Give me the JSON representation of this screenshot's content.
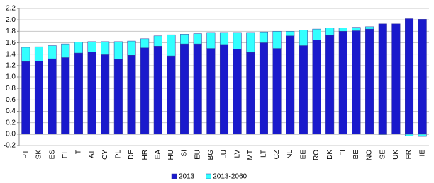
{
  "chart_data": {
    "type": "stacked-bar",
    "categories": [
      "PT",
      "SK",
      "ES",
      "EL",
      "IT",
      "AT",
      "CY",
      "PL",
      "DE",
      "HR",
      "EA",
      "HU",
      "SI",
      "EU",
      "BG",
      "LU",
      "LV",
      "MT",
      "LT",
      "CZ",
      "NL",
      "EE",
      "RO",
      "DK",
      "FI",
      "BE",
      "NO",
      "SE",
      "UK",
      "FR",
      "IE"
    ],
    "series": [
      {
        "name": "2013",
        "color": "#1a1acc",
        "values": [
          1.27,
          1.28,
          1.32,
          1.34,
          1.42,
          1.44,
          1.39,
          1.31,
          1.38,
          1.51,
          1.54,
          1.37,
          1.58,
          1.58,
          1.5,
          1.57,
          1.49,
          1.43,
          1.6,
          1.5,
          1.72,
          1.55,
          1.65,
          1.73,
          1.8,
          1.81,
          1.84,
          1.93,
          1.93,
          2.02,
          2.01
        ]
      },
      {
        "name": "2013-2060",
        "color": "#33ffff",
        "values": [
          0.25,
          0.25,
          0.23,
          0.24,
          0.19,
          0.18,
          0.23,
          0.31,
          0.25,
          0.16,
          0.18,
          0.37,
          0.17,
          0.18,
          0.28,
          0.21,
          0.29,
          0.35,
          0.19,
          0.3,
          0.08,
          0.27,
          0.19,
          0.13,
          0.06,
          0.06,
          0.04,
          -0.01,
          0,
          -0.03,
          -0.04
        ]
      }
    ],
    "ylim": [
      -0.2,
      2.2
    ],
    "yticks": [
      2.2,
      {
        "value": 2,
        "label": "2.0"
      },
      1.8,
      1.6,
      1.4,
      1.2,
      {
        "value": 1,
        "label": "1.0"
      },
      0.8,
      0.6,
      0.4,
      0.2,
      {
        "value": 0,
        "label": "0.0"
      },
      -0.2
    ],
    "grid": true,
    "legend": "bottom"
  }
}
